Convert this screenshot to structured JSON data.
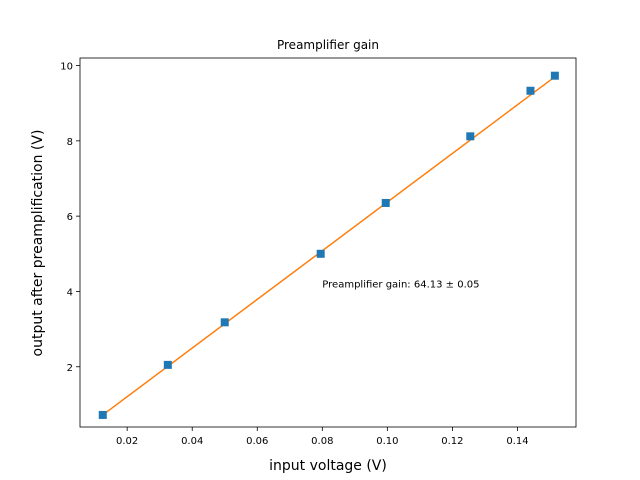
{
  "chart_data": {
    "type": "scatter",
    "title": "Preamplifier gain",
    "xlabel": "input voltage (V)",
    "ylabel": "output after preamplification (V)",
    "xlim": [
      0.0055,
      0.158
    ],
    "ylim": [
      0.4,
      10.2
    ],
    "xticks": [
      0.02,
      0.04,
      0.06,
      0.08,
      0.1,
      0.12,
      0.14
    ],
    "xtick_labels": [
      "0.02",
      "0.04",
      "0.06",
      "0.08",
      "0.10",
      "0.12",
      "0.14"
    ],
    "yticks": [
      2,
      4,
      6,
      8,
      10
    ],
    "ytick_labels": [
      "2",
      "4",
      "6",
      "8",
      "10"
    ],
    "grid": false,
    "series": [
      {
        "kind": "points",
        "marker": "square",
        "color": "#1f77b4",
        "x": [
          0.0125,
          0.0325,
          0.05,
          0.0795,
          0.0995,
          0.1255,
          0.144,
          0.1515
        ],
        "y": [
          0.72,
          2.05,
          3.18,
          5.0,
          6.35,
          8.12,
          9.33,
          9.73
        ]
      },
      {
        "kind": "fit-line",
        "color": "#ff7f0e",
        "x": [
          0.0125,
          0.1515
        ],
        "y": [
          0.72,
          9.7
        ]
      }
    ],
    "annotations": [
      {
        "text": "Preamplifier gain: 64.13 ± 0.05",
        "x": 0.08,
        "y": 4.1
      }
    ]
  }
}
